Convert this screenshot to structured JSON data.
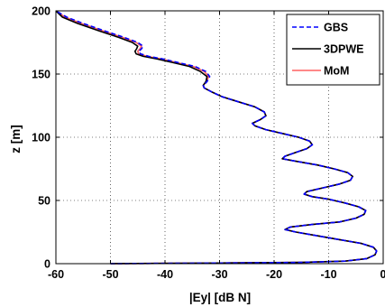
{
  "chart_data": {
    "type": "line",
    "title": "",
    "xlabel": "|Ey| [dB N]",
    "ylabel": "z [m]",
    "xlim": [
      -60,
      0
    ],
    "ylim": [
      0,
      200
    ],
    "xticks": [
      -60,
      -50,
      -40,
      -30,
      -20,
      -10,
      0
    ],
    "yticks": [
      0,
      50,
      100,
      150,
      200
    ],
    "grid": true,
    "legend_position": "top-right",
    "series": [
      {
        "name": "GBS",
        "color": "#0000ff",
        "style": "dashed",
        "points": [
          [
            -50,
            0
          ],
          [
            -30,
            0.5
          ],
          [
            -15,
            1
          ],
          [
            -7,
            2
          ],
          [
            -3,
            4
          ],
          [
            -1.5,
            7
          ],
          [
            -1.2,
            10
          ],
          [
            -1.8,
            13
          ],
          [
            -4,
            16
          ],
          [
            -8,
            19
          ],
          [
            -12,
            22
          ],
          [
            -16,
            25
          ],
          [
            -18,
            27
          ],
          [
            -17,
            29
          ],
          [
            -13,
            31
          ],
          [
            -8,
            33
          ],
          [
            -5,
            36
          ],
          [
            -3.5,
            39
          ],
          [
            -3.2,
            42
          ],
          [
            -4.5,
            45
          ],
          [
            -7,
            48
          ],
          [
            -10,
            51
          ],
          [
            -13,
            53
          ],
          [
            -14.5,
            55
          ],
          [
            -14,
            57
          ],
          [
            -11,
            60
          ],
          [
            -8,
            63
          ],
          [
            -6,
            66
          ],
          [
            -5.6,
            69
          ],
          [
            -6.5,
            72
          ],
          [
            -9,
            75
          ],
          [
            -12,
            78
          ],
          [
            -16,
            81
          ],
          [
            -18.5,
            83
          ],
          [
            -18,
            85
          ],
          [
            -16,
            88
          ],
          [
            -14,
            91
          ],
          [
            -13,
            94
          ],
          [
            -13.5,
            97
          ],
          [
            -15.5,
            100
          ],
          [
            -18.5,
            103
          ],
          [
            -21.5,
            106
          ],
          [
            -23.5,
            109
          ],
          [
            -24,
            111
          ],
          [
            -22.5,
            114
          ],
          [
            -21.5,
            117
          ],
          [
            -21.8,
            120
          ],
          [
            -23.5,
            124
          ],
          [
            -26.5,
            128
          ],
          [
            -29.5,
            132
          ],
          [
            -31.5,
            136
          ],
          [
            -32.8,
            139
          ],
          [
            -33,
            141
          ],
          [
            -32.3,
            144
          ],
          [
            -31.8,
            148
          ],
          [
            -32.5,
            152
          ],
          [
            -34.5,
            156
          ],
          [
            -37.5,
            159
          ],
          [
            -40.5,
            162
          ],
          [
            -43,
            164
          ],
          [
            -44.5,
            166
          ],
          [
            -44.8,
            168
          ],
          [
            -44.3,
            170
          ],
          [
            -44,
            172
          ],
          [
            -45,
            175
          ],
          [
            -47.5,
            179
          ],
          [
            -51,
            184
          ],
          [
            -55,
            190
          ],
          [
            -58,
            195
          ],
          [
            -60,
            200
          ]
        ]
      },
      {
        "name": "3DPWE",
        "color": "#000000",
        "style": "solid",
        "points": [
          [
            -50,
            0
          ],
          [
            -30,
            0.5
          ],
          [
            -15,
            1
          ],
          [
            -7,
            2
          ],
          [
            -3,
            4
          ],
          [
            -1.5,
            7
          ],
          [
            -1.2,
            10
          ],
          [
            -1.8,
            13
          ],
          [
            -4,
            16
          ],
          [
            -8,
            19
          ],
          [
            -12,
            22
          ],
          [
            -16,
            25
          ],
          [
            -18,
            27
          ],
          [
            -17,
            29
          ],
          [
            -13,
            31
          ],
          [
            -8,
            33
          ],
          [
            -5,
            36
          ],
          [
            -3.5,
            39
          ],
          [
            -3.2,
            42
          ],
          [
            -4.5,
            45
          ],
          [
            -7,
            48
          ],
          [
            -10,
            51
          ],
          [
            -13,
            53
          ],
          [
            -14.5,
            55
          ],
          [
            -14,
            57
          ],
          [
            -11,
            60
          ],
          [
            -8,
            63
          ],
          [
            -6,
            66
          ],
          [
            -5.6,
            69
          ],
          [
            -6.5,
            72
          ],
          [
            -9,
            75
          ],
          [
            -12,
            78
          ],
          [
            -16,
            81
          ],
          [
            -18.5,
            83
          ],
          [
            -18,
            85
          ],
          [
            -16,
            88
          ],
          [
            -14,
            91
          ],
          [
            -13,
            94
          ],
          [
            -13.5,
            97
          ],
          [
            -15.5,
            100
          ],
          [
            -18.5,
            103
          ],
          [
            -21.5,
            106
          ],
          [
            -23.5,
            109
          ],
          [
            -24,
            111
          ],
          [
            -22.5,
            114
          ],
          [
            -21.5,
            117
          ],
          [
            -21.8,
            120
          ],
          [
            -23.5,
            124
          ],
          [
            -26.5,
            128
          ],
          [
            -29.5,
            132
          ],
          [
            -31.5,
            136
          ],
          [
            -32.8,
            139
          ],
          [
            -33,
            141
          ],
          [
            -32.5,
            144
          ],
          [
            -32.3,
            148
          ],
          [
            -33.5,
            152
          ],
          [
            -35.5,
            156
          ],
          [
            -38.5,
            159
          ],
          [
            -41.5,
            162
          ],
          [
            -44,
            164
          ],
          [
            -45.3,
            166
          ],
          [
            -45.5,
            168
          ],
          [
            -45.2,
            170
          ],
          [
            -45,
            172
          ],
          [
            -46,
            175
          ],
          [
            -48.5,
            179
          ],
          [
            -52,
            184
          ],
          [
            -56,
            190
          ],
          [
            -58.8,
            195
          ],
          [
            -60,
            200
          ]
        ]
      },
      {
        "name": "MoM",
        "color": "#ff6060",
        "style": "solid",
        "points": [
          [
            -50,
            0
          ],
          [
            -30,
            0.5
          ],
          [
            -15,
            1
          ],
          [
            -7,
            2
          ],
          [
            -3,
            4
          ],
          [
            -1.5,
            7
          ],
          [
            -1.2,
            10
          ],
          [
            -1.8,
            13
          ],
          [
            -4,
            16
          ],
          [
            -8,
            19
          ],
          [
            -12,
            22
          ],
          [
            -16,
            25
          ],
          [
            -18,
            27
          ],
          [
            -17,
            29
          ],
          [
            -13,
            31
          ],
          [
            -8,
            33
          ],
          [
            -5,
            36
          ],
          [
            -3.5,
            39
          ],
          [
            -3.2,
            42
          ],
          [
            -4.5,
            45
          ],
          [
            -7,
            48
          ],
          [
            -10,
            51
          ],
          [
            -13,
            53
          ],
          [
            -14.5,
            55
          ],
          [
            -14,
            57
          ],
          [
            -11,
            60
          ],
          [
            -8,
            63
          ],
          [
            -6,
            66
          ],
          [
            -5.6,
            69
          ],
          [
            -6.5,
            72
          ],
          [
            -9,
            75
          ],
          [
            -12,
            78
          ],
          [
            -16,
            81
          ],
          [
            -18.5,
            83
          ],
          [
            -18,
            85
          ],
          [
            -16,
            88
          ],
          [
            -14,
            91
          ],
          [
            -13,
            94
          ],
          [
            -13.5,
            97
          ],
          [
            -15.5,
            100
          ],
          [
            -18.5,
            103
          ],
          [
            -21.5,
            106
          ],
          [
            -23.5,
            109
          ],
          [
            -24,
            111
          ],
          [
            -22.5,
            114
          ],
          [
            -21.5,
            117
          ],
          [
            -21.8,
            120
          ],
          [
            -23.5,
            124
          ],
          [
            -26.5,
            128
          ],
          [
            -29.5,
            132
          ],
          [
            -31.5,
            136
          ],
          [
            -32.8,
            139
          ],
          [
            -33,
            141
          ],
          [
            -32.4,
            144
          ],
          [
            -32,
            148
          ],
          [
            -32.8,
            152
          ],
          [
            -34.8,
            156
          ],
          [
            -37.8,
            159
          ],
          [
            -40.8,
            162
          ],
          [
            -43.3,
            164
          ],
          [
            -44.8,
            166
          ],
          [
            -45,
            168
          ],
          [
            -44.6,
            170
          ],
          [
            -44.3,
            172
          ],
          [
            -45.3,
            175
          ],
          [
            -47.8,
            179
          ],
          [
            -51.3,
            184
          ],
          [
            -55.3,
            190
          ],
          [
            -58.3,
            195
          ],
          [
            -60,
            200
          ]
        ]
      }
    ]
  }
}
